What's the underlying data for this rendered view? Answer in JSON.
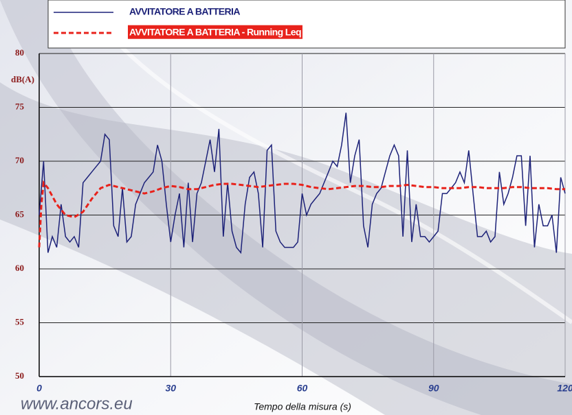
{
  "chart_data": {
    "type": "line",
    "y_label": "dB(A)",
    "x_label": "Tempo della misura (s)",
    "watermark": "www.ancors.eu",
    "xlim": [
      0,
      120
    ],
    "xticks": [
      0,
      30,
      60,
      90,
      120
    ],
    "ylim": [
      50,
      80
    ],
    "yticks": [
      50,
      55,
      60,
      65,
      70,
      75,
      80
    ],
    "grid": true,
    "series": [
      {
        "name": "AVVITATORE A BATTERIA",
        "color": "#1c2178",
        "dash": false,
        "x": [
          0,
          1,
          2,
          3,
          4,
          5,
          6,
          7,
          8,
          9,
          10,
          11,
          12,
          13,
          14,
          15,
          16,
          17,
          18,
          19,
          20,
          21,
          22,
          23,
          24,
          25,
          26,
          27,
          28,
          29,
          30,
          31,
          32,
          33,
          34,
          35,
          36,
          37,
          38,
          39,
          40,
          41,
          42,
          43,
          44,
          45,
          46,
          47,
          48,
          49,
          50,
          51,
          52,
          53,
          54,
          55,
          56,
          57,
          58,
          59,
          60,
          61,
          62,
          63,
          64,
          65,
          66,
          67,
          68,
          69,
          70,
          71,
          72,
          73,
          74,
          75,
          76,
          77,
          78,
          79,
          80,
          81,
          82,
          83,
          84,
          85,
          86,
          87,
          88,
          89,
          90,
          91,
          92,
          93,
          94,
          95,
          96,
          97,
          98,
          99,
          100,
          101,
          102,
          103,
          104,
          105,
          106,
          107,
          108,
          109,
          110,
          111,
          112,
          113,
          114,
          115,
          116,
          117,
          118,
          119,
          120
        ],
        "values": [
          65,
          70,
          61.5,
          63,
          62,
          66,
          63,
          62.5,
          63,
          62,
          68,
          68.5,
          69,
          69.5,
          70,
          72.5,
          72,
          64,
          63,
          67.5,
          62.5,
          63,
          66,
          67,
          68,
          68.5,
          69,
          71.5,
          70,
          66,
          62.5,
          65,
          67,
          62,
          68,
          62.5,
          67,
          68,
          70,
          72,
          69,
          73,
          63,
          68,
          63.5,
          62,
          61.5,
          66,
          68.5,
          69,
          67,
          62,
          71,
          71.5,
          63.5,
          62.5,
          62,
          62,
          62,
          62.5,
          67,
          65,
          66,
          66.5,
          67,
          68,
          69,
          70,
          69.5,
          71.5,
          74.5,
          68,
          70.5,
          72,
          64,
          62,
          66,
          67,
          67.5,
          69,
          70.5,
          71.5,
          70.5,
          63,
          71,
          62.5,
          66,
          63,
          63,
          62.5,
          63,
          63.5,
          67,
          67,
          67.5,
          68,
          69,
          68,
          71,
          67,
          63,
          63,
          63.5,
          62.5,
          63,
          69,
          66,
          67,
          68.5,
          70.5,
          70.5,
          64,
          70.5,
          62,
          66,
          64,
          64,
          65,
          61.5,
          68.5,
          67
        ]
      },
      {
        "name": "AVVITATORE A BATTERIA - Running Leq",
        "color": "#e8221b",
        "dash": true,
        "x": [
          0,
          0.5,
          1,
          2,
          4,
          6,
          8,
          10,
          12,
          14,
          16,
          18,
          20,
          22,
          24,
          26,
          28,
          30,
          32,
          34,
          36,
          38,
          40,
          42,
          44,
          46,
          48,
          50,
          52,
          54,
          56,
          58,
          60,
          62,
          64,
          66,
          68,
          70,
          72,
          74,
          76,
          78,
          80,
          82,
          84,
          86,
          88,
          90,
          92,
          94,
          96,
          98,
          100,
          102,
          104,
          106,
          108,
          110,
          112,
          114,
          116,
          118,
          120
        ],
        "values": [
          62,
          66,
          68,
          67.5,
          66,
          65,
          64.8,
          65.3,
          66.5,
          67.5,
          67.8,
          67.6,
          67.4,
          67.2,
          67,
          67.2,
          67.5,
          67.7,
          67.6,
          67.4,
          67.4,
          67.6,
          67.8,
          67.9,
          67.9,
          67.8,
          67.7,
          67.6,
          67.7,
          67.8,
          67.9,
          67.9,
          67.8,
          67.6,
          67.5,
          67.4,
          67.5,
          67.6,
          67.7,
          67.7,
          67.6,
          67.6,
          67.7,
          67.7,
          67.8,
          67.7,
          67.6,
          67.6,
          67.5,
          67.5,
          67.5,
          67.6,
          67.6,
          67.5,
          67.5,
          67.5,
          67.6,
          67.6,
          67.5,
          67.5,
          67.5,
          67.4,
          67.4
        ]
      }
    ]
  }
}
